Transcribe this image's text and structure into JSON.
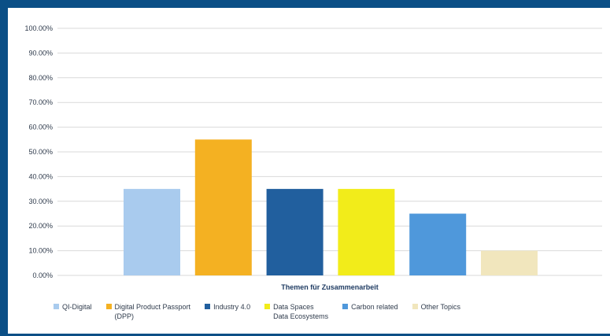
{
  "chart_data": {
    "type": "bar",
    "xlabel": "Themen für Zusammenarbeit",
    "ylabel": "",
    "ylim": [
      0,
      100
    ],
    "yticks": [
      0,
      10,
      20,
      30,
      40,
      50,
      60,
      70,
      80,
      90,
      100
    ],
    "ytick_labels": [
      "0.00%",
      "10.00%",
      "20.00%",
      "30.00%",
      "40.00%",
      "50.00%",
      "60.00%",
      "70.00%",
      "80.00%",
      "90.00%",
      "100.00%"
    ],
    "grid": true,
    "legend_position": "bottom",
    "categories": [
      "QI-Digital",
      "Digital Product Passport\n(DPP)",
      "Industry 4.0",
      "Data Spaces\nData Ecosystems",
      "Carbon related",
      "Other Topics"
    ],
    "values": [
      35,
      55,
      35,
      35,
      25,
      10
    ],
    "colors": [
      "#a9cbee",
      "#f4b122",
      "#215f9e",
      "#f2ec1a",
      "#4f98db",
      "#f1e6bd"
    ]
  },
  "colors": {
    "background": "#0b4f86",
    "plot_background": "#ffffff",
    "gridline": "#d9d9d9"
  }
}
